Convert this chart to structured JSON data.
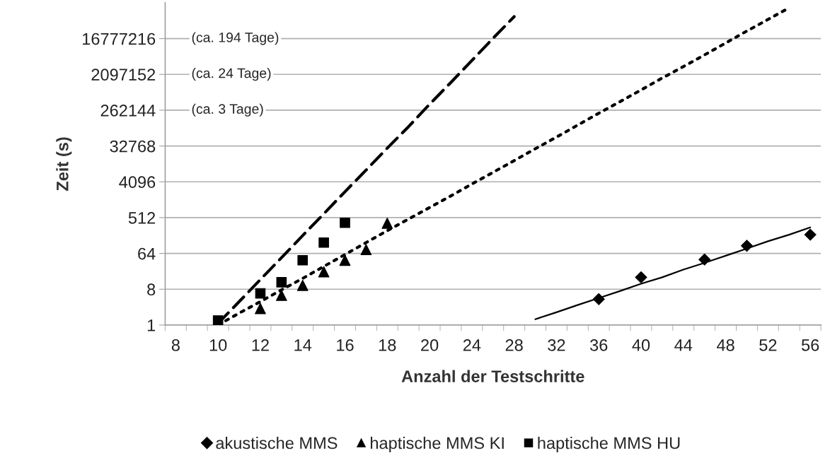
{
  "chart_data": {
    "type": "scatter",
    "xlabel": "Anzahl der Testschritte",
    "ylabel": "Zeit (s)",
    "log": "y",
    "grid": "y",
    "legend": "bottom",
    "categories": [
      "8",
      null,
      "10",
      null,
      "12",
      null,
      "14",
      null,
      "16",
      null,
      "18",
      null,
      "20",
      null,
      "24",
      null,
      "28",
      null,
      "32",
      null,
      "36",
      null,
      "40",
      null,
      "44",
      null,
      "48",
      null,
      "52",
      null,
      "56"
    ],
    "ylim": [
      1,
      134217728
    ],
    "yticks": [
      1,
      8,
      64,
      512,
      4096,
      32768,
      262144,
      2097152,
      16777216
    ],
    "annotations": [
      "(ca. 194 Tage)",
      "(ca. 24 Tage)",
      "(ca. 3 Tage)"
    ],
    "series": [
      {
        "type": "line",
        "color": "#000000",
        "line_style": "solid",
        "marker": "none",
        "values": [
          null,
          null,
          null,
          null,
          null,
          null,
          null,
          null,
          null,
          null,
          null,
          null,
          null,
          null,
          null,
          null,
          null,
          1.4,
          2.1,
          3.2,
          4.8,
          7.2,
          11,
          16,
          25,
          37,
          56,
          85,
          130,
          190,
          290
        ]
      },
      {
        "type": "line",
        "color": "#000000",
        "line_style": "dotted",
        "marker": "none",
        "values": [
          null,
          null,
          1,
          2,
          3.9,
          7.7,
          15,
          30,
          60,
          120,
          240,
          470,
          920,
          1800,
          3600,
          7100,
          14000,
          28000,
          55000,
          110000,
          220000,
          430000,
          850000,
          1700000,
          3300000,
          6500000,
          13000000,
          26000000,
          51000000,
          100000000,
          null
        ]
      },
      {
        "type": "line",
        "color": "#000000",
        "line_style": "dashed",
        "marker": "none",
        "values": [
          null,
          null,
          1.1,
          3.9,
          14,
          50,
          180,
          640,
          2300,
          8100,
          29000,
          100000,
          370000,
          1300000,
          4700000,
          17000000,
          60000000,
          null,
          null,
          null,
          null,
          null,
          null,
          null,
          null,
          null,
          null,
          null,
          null,
          null,
          null
        ]
      },
      {
        "name": "akustische MMS",
        "color": "#000000",
        "marker": "diamond",
        "values": [
          null,
          null,
          null,
          null,
          null,
          null,
          null,
          null,
          null,
          null,
          null,
          null,
          null,
          null,
          null,
          null,
          null,
          null,
          null,
          null,
          4.5,
          null,
          16,
          null,
          null,
          45,
          null,
          100,
          null,
          null,
          190
        ]
      },
      {
        "name": "haptische MMS KI",
        "color": "#000000",
        "marker": "triangle",
        "values": [
          null,
          null,
          null,
          null,
          2.6,
          5.6,
          10,
          22,
          43,
          80,
          370,
          null,
          null,
          null,
          null,
          null,
          null,
          null,
          null,
          null,
          null,
          null,
          null,
          null,
          null,
          null,
          null,
          null,
          null,
          null,
          null
        ]
      },
      {
        "name": "haptische MMS HU",
        "color": "#000000",
        "marker": "square",
        "values": [
          null,
          null,
          1.3,
          null,
          6.3,
          12,
          43,
          120,
          380,
          null,
          null,
          null,
          null,
          null,
          null,
          null,
          null,
          null,
          null,
          null,
          null,
          null,
          null,
          null,
          null,
          null,
          null,
          null,
          null,
          null,
          null
        ]
      }
    ]
  }
}
